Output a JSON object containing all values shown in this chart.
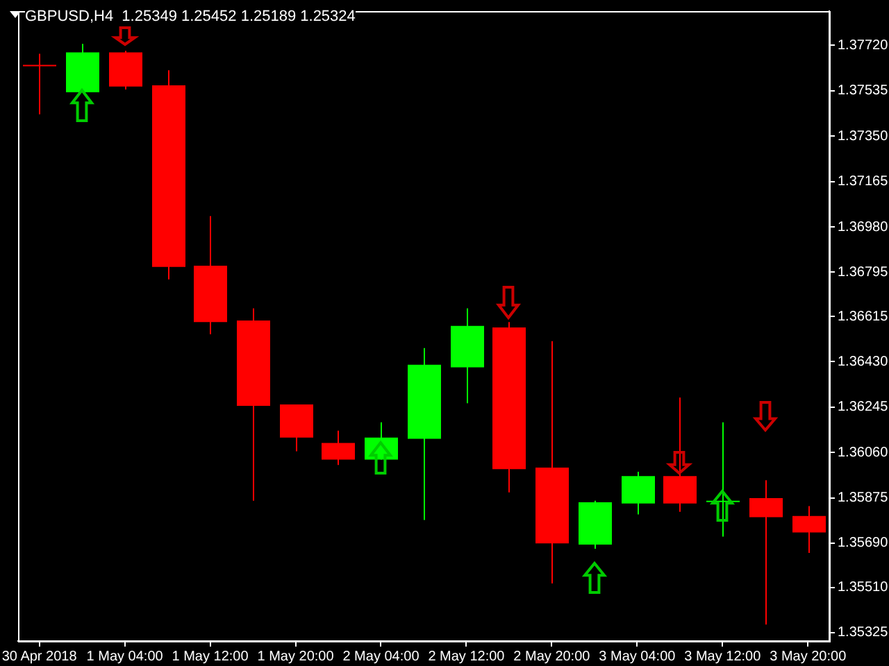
{
  "chart_data": {
    "type": "candlestick",
    "title": "GBPUSD,H4  1.25349 1.25452 1.25189 1.25324",
    "categories": [
      "30 Apr 2018",
      null,
      "1 May 04:00",
      null,
      "1 May 12:00",
      null,
      "1 May 20:00",
      null,
      "2 May 04:00",
      null,
      "2 May 12:00",
      null,
      "2 May 20:00",
      null,
      "3 May 04:00",
      null,
      "3 May 12:00",
      null,
      "3 May 20:00"
    ],
    "ohlc": [
      [
        1.37641,
        1.37686,
        1.37439,
        1.37641
      ],
      [
        1.37529,
        1.37726,
        1.37529,
        1.37692
      ],
      [
        1.37692,
        1.37698,
        1.3754,
        1.37552
      ],
      [
        1.37557,
        1.37619,
        1.36766,
        1.36817
      ],
      [
        1.36822,
        1.37024,
        1.36542,
        1.36592
      ],
      [
        1.36598,
        1.36648,
        1.35863,
        1.3625
      ],
      [
        1.36256,
        1.36256,
        1.36065,
        1.36121
      ],
      [
        1.36099,
        1.36149,
        1.36009,
        1.36031
      ],
      [
        1.36031,
        1.36183,
        1.36031,
        1.36121
      ],
      [
        1.36116,
        1.36486,
        1.35785,
        1.36418
      ],
      [
        1.36407,
        1.36648,
        1.36261,
        1.36576
      ],
      [
        1.3657,
        1.36592,
        1.35897,
        1.35992
      ],
      [
        1.35998,
        1.36514,
        1.35526,
        1.35689
      ],
      [
        1.35684,
        1.35863,
        1.35667,
        1.35857
      ],
      [
        1.35852,
        1.35981,
        1.35807,
        1.35964
      ],
      [
        1.35964,
        1.36284,
        1.35818,
        1.35852
      ],
      [
        1.35863,
        1.36183,
        1.35717,
        1.35863
      ],
      [
        1.35874,
        1.35947,
        1.35358,
        1.35796
      ],
      [
        1.35801,
        1.35841,
        1.3565,
        1.35734
      ]
    ],
    "colors": [
      "#ff0000",
      "#00ff00",
      "#ff0000",
      "#ff0000",
      "#ff0000",
      "#ff0000",
      "#ff0000",
      "#ff0000",
      "#00ff00",
      "#00ff00",
      "#00ff00",
      "#ff0000",
      "#ff0000",
      "#00ff00",
      "#00ff00",
      "#ff0000",
      "#00ff00",
      "#ff0000",
      "#ff0000"
    ],
    "ylim": [
      1.35291,
      1.3786
    ],
    "yticks": [
      {
        "value": 1.3772,
        "label": "1.37720"
      },
      1.37535,
      {
        "value": 1.3735,
        "label": "1.37350"
      },
      1.37165,
      {
        "value": 1.3698,
        "label": "1.36980"
      },
      1.36795,
      1.36615,
      {
        "value": 1.3643,
        "label": "1.36430"
      },
      1.36245,
      {
        "value": 1.3606,
        "label": "1.36060"
      },
      1.35875,
      {
        "value": 1.3569,
        "label": "1.35690"
      },
      {
        "value": 1.3551,
        "label": "1.35510"
      },
      1.35325
    ],
    "grid": false,
    "legend": false
  }
}
